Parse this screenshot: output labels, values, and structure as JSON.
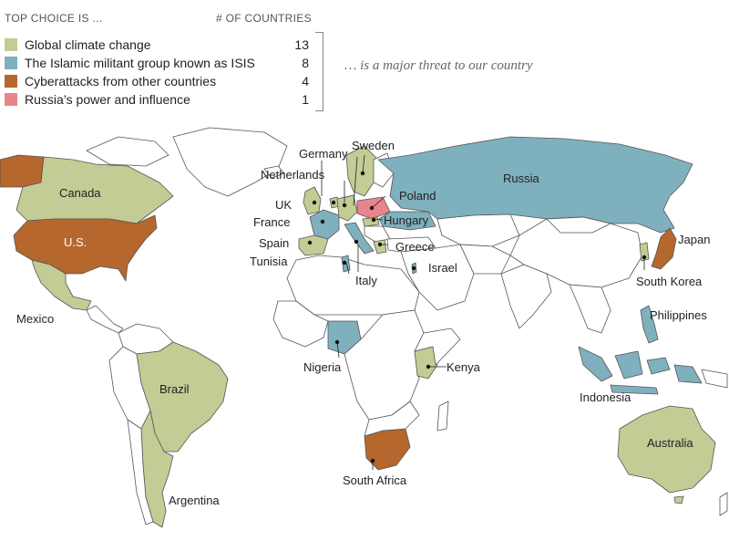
{
  "legend": {
    "heading": "TOP CHOICE IS ...",
    "count_heading": "# OF COUNTRIES",
    "items": [
      {
        "label": "Global climate change",
        "count": "13",
        "color": "#c3cc94"
      },
      {
        "label": "The Islamic militant group known as ISIS",
        "count": "8",
        "color": "#7fb0bd"
      },
      {
        "label": "Cyberattacks from other countries",
        "count": "4",
        "color": "#b5672e"
      },
      {
        "label": "Russia’s power and influence",
        "count": "1",
        "color": "#e6868a"
      }
    ],
    "note": "… is a major threat to our country"
  },
  "countries": {
    "canada": "Canada",
    "us": "U.S.",
    "mexico": "Mexico",
    "brazil": "Brazil",
    "argentina": "Argentina",
    "uk": "UK",
    "france": "France",
    "spain": "Spain",
    "tunisia": "Tunisia",
    "netherlands": "Netherlands",
    "germany": "Germany",
    "sweden": "Sweden",
    "poland": "Poland",
    "hungary": "Hungary",
    "greece": "Greece",
    "italy": "Italy",
    "israel": "Israel",
    "russia": "Russia",
    "japan": "Japan",
    "south_korea": "South Korea",
    "philippines": "Philippines",
    "indonesia": "Indonesia",
    "australia": "Australia",
    "nigeria": "Nigeria",
    "kenya": "Kenya",
    "south_africa": "South Africa"
  }
}
